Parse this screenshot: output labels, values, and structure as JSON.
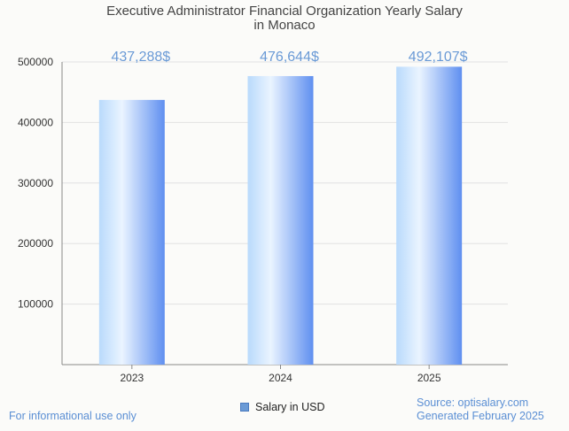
{
  "chart_data": {
    "type": "bar",
    "title": "Executive Administrator Financial Organization Yearly Salary",
    "subtitle": "in Monaco",
    "categories": [
      "2023",
      "2024",
      "2025"
    ],
    "series": [
      {
        "name": "Salary in USD",
        "values": [
          437288,
          476644,
          492107
        ]
      }
    ],
    "data_labels": [
      "437,288$",
      "476,644$",
      "492,107$"
    ],
    "y_ticks": [
      "100000",
      "200000",
      "300000",
      "400000",
      "500000"
    ],
    "ylim": [
      0,
      500000
    ],
    "grid": true,
    "legend_position": "bottom-center"
  },
  "footer": {
    "left": "For informational use only",
    "source": "Source: optisalary.com",
    "generated": "Generated February 2025"
  },
  "colors": {
    "bar_light": "#eaf4ff",
    "bar_mid": "#b9dafc",
    "bar_dark": "#5f8ff0",
    "label": "#6a9ad6",
    "accent": "#5b8fd4"
  }
}
